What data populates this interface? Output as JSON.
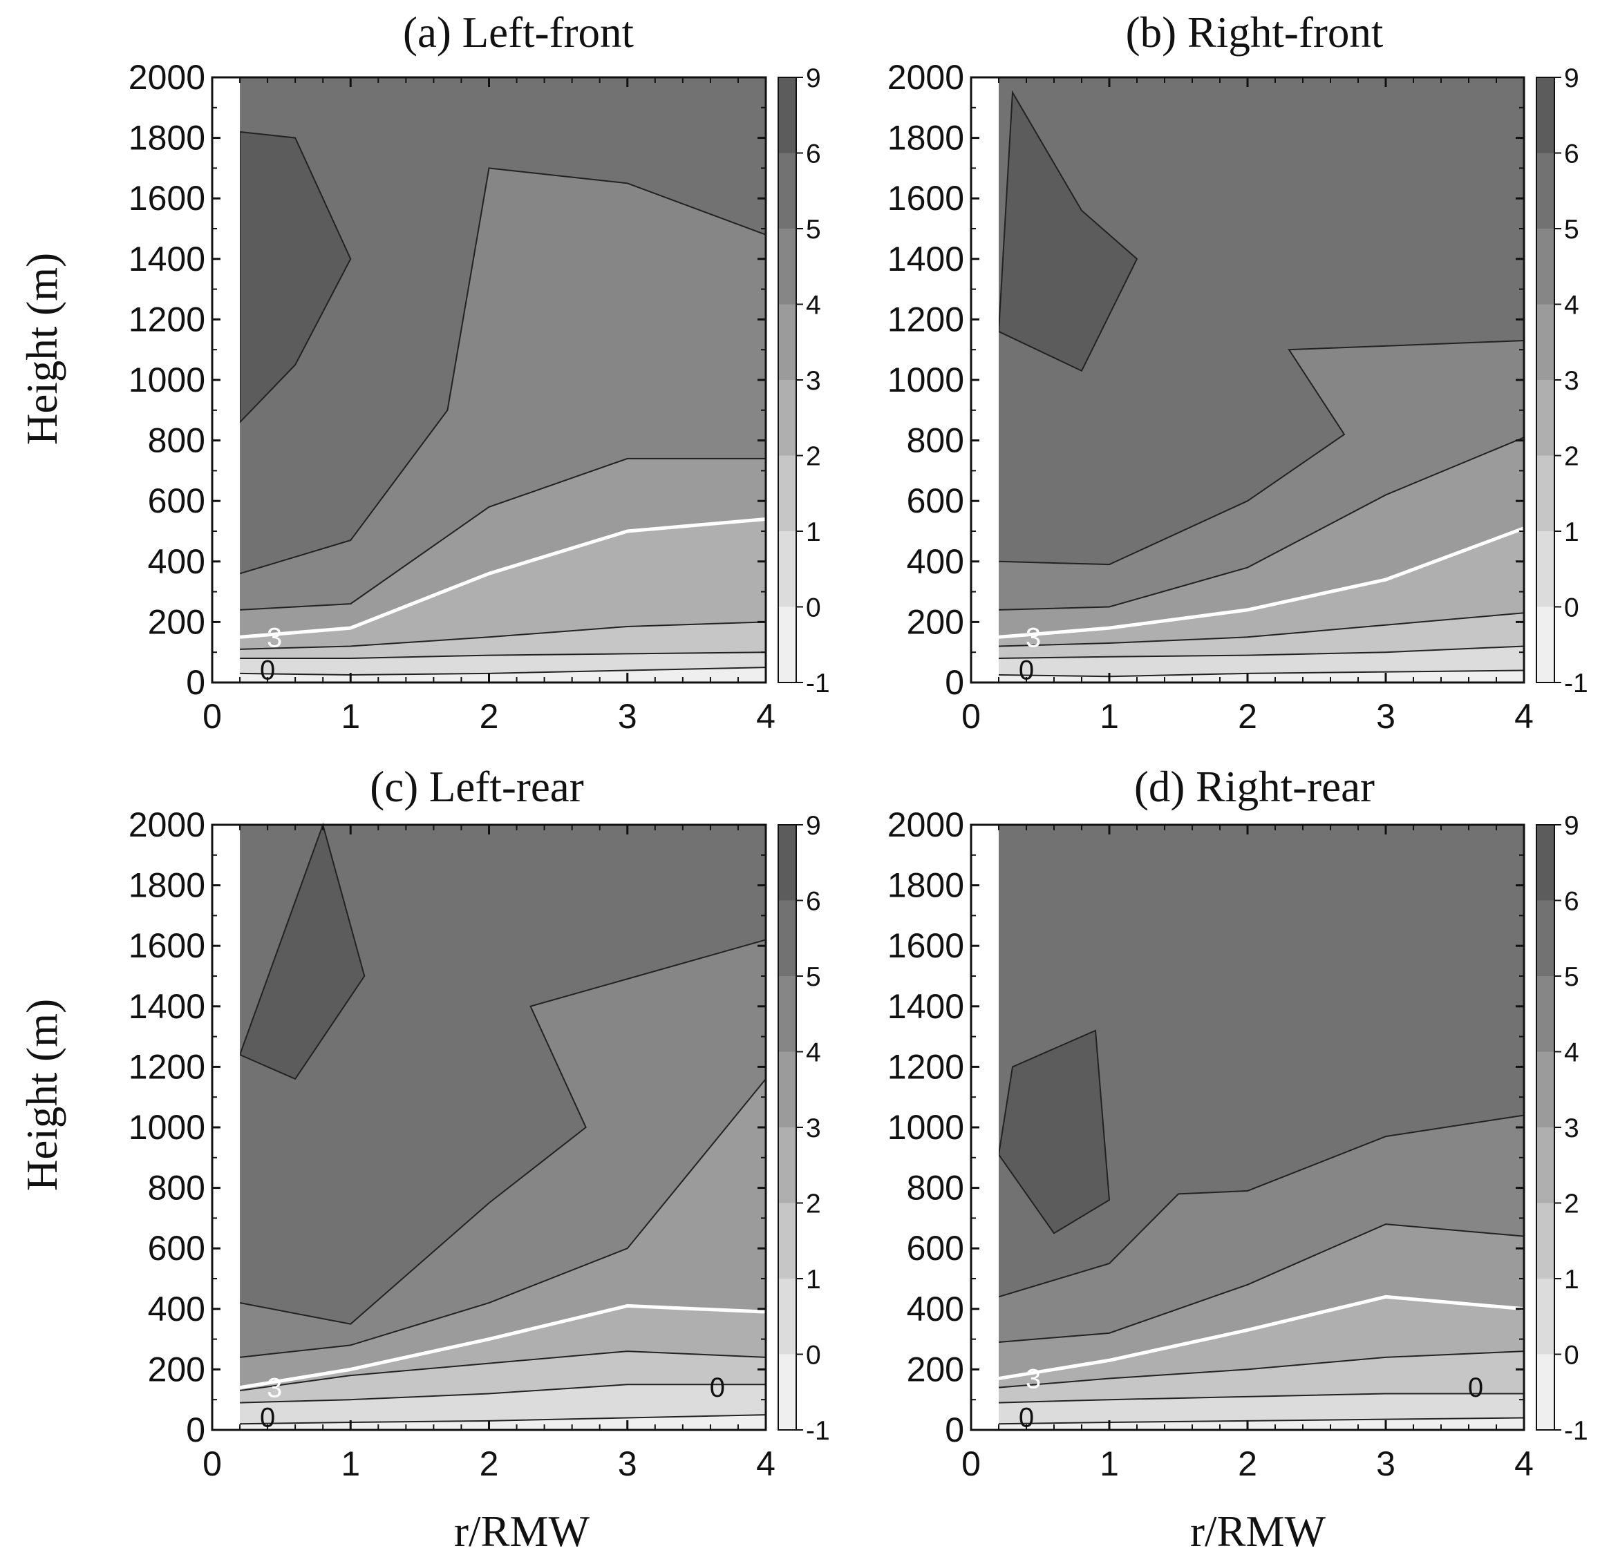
{
  "chart_data": {
    "type": "contour",
    "xlabel": "r/RMW",
    "ylabel": "Height (m)",
    "xlim": [
      0,
      4
    ],
    "ylim": [
      0,
      2000
    ],
    "x_ticks": [
      "0",
      "1",
      "2",
      "3",
      "4"
    ],
    "y_ticks": [
      "0",
      "200",
      "400",
      "600",
      "800",
      "1000",
      "1200",
      "1400",
      "1600",
      "1800",
      "2000"
    ],
    "colorbar_levels": [
      "-1",
      "0",
      "1",
      "2",
      "3",
      "4",
      "5",
      "6",
      "9"
    ],
    "colorbar_colors": [
      "#efefef",
      "#dcdcdc",
      "#c6c6c6",
      "#afafaf",
      "#9b9b9b",
      "#868686",
      "#727272",
      "#5c5c5c"
    ],
    "highlight_contour": {
      "value": "3",
      "color": "#ffffff"
    },
    "panels": [
      {
        "title": "(a) Left-front",
        "contour_labels": [
          "3",
          "0"
        ],
        "contours": [
          {
            "level": 0,
            "points": [
              [
                0.2,
                30
              ],
              [
                1,
                25
              ],
              [
                2,
                30
              ],
              [
                3,
                40
              ],
              [
                4,
                50
              ]
            ]
          },
          {
            "level": 1,
            "points": [
              [
                0.2,
                80
              ],
              [
                1,
                80
              ],
              [
                2,
                90
              ],
              [
                3,
                95
              ],
              [
                4,
                100
              ]
            ]
          },
          {
            "level": 2,
            "points": [
              [
                0.2,
                110
              ],
              [
                1,
                120
              ],
              [
                2,
                150
              ],
              [
                3,
                185
              ],
              [
                4,
                200
              ]
            ]
          },
          {
            "level": 3,
            "points": [
              [
                0.2,
                150
              ],
              [
                1,
                180
              ],
              [
                2,
                360
              ],
              [
                3,
                500
              ],
              [
                4,
                540
              ]
            ]
          },
          {
            "level": 4,
            "points": [
              [
                0.2,
                240
              ],
              [
                1,
                260
              ],
              [
                2,
                580
              ],
              [
                3,
                740
              ],
              [
                4,
                740
              ]
            ]
          },
          {
            "level": 5,
            "points": [
              [
                0.2,
                360
              ],
              [
                1,
                470
              ],
              [
                1.7,
                900
              ],
              [
                2,
                1700
              ],
              [
                3,
                1650
              ],
              [
                4,
                1480
              ]
            ]
          },
          {
            "level": 6,
            "points": [
              [
                0.2,
                860
              ],
              [
                0.6,
                1050
              ],
              [
                1,
                1400
              ],
              [
                0.6,
                1800
              ],
              [
                0.2,
                1820
              ]
            ]
          }
        ]
      },
      {
        "title": "(b) Right-front",
        "contour_labels": [
          "3",
          "0"
        ],
        "contours": [
          {
            "level": 0,
            "points": [
              [
                0.2,
                25
              ],
              [
                1,
                20
              ],
              [
                2,
                30
              ],
              [
                3,
                35
              ],
              [
                4,
                40
              ]
            ]
          },
          {
            "level": 1,
            "points": [
              [
                0.2,
                80
              ],
              [
                1,
                85
              ],
              [
                2,
                90
              ],
              [
                3,
                100
              ],
              [
                4,
                120
              ]
            ]
          },
          {
            "level": 2,
            "points": [
              [
                0.2,
                120
              ],
              [
                1,
                130
              ],
              [
                2,
                150
              ],
              [
                3,
                190
              ],
              [
                4,
                230
              ]
            ]
          },
          {
            "level": 3,
            "points": [
              [
                0.2,
                150
              ],
              [
                1,
                180
              ],
              [
                2,
                240
              ],
              [
                3,
                340
              ],
              [
                4,
                510
              ]
            ]
          },
          {
            "level": 4,
            "points": [
              [
                0.2,
                240
              ],
              [
                1,
                250
              ],
              [
                2,
                380
              ],
              [
                3,
                620
              ],
              [
                4,
                810
              ]
            ]
          },
          {
            "level": 5,
            "points": [
              [
                0.2,
                400
              ],
              [
                1,
                390
              ],
              [
                2,
                600
              ],
              [
                2.7,
                820
              ],
              [
                2.3,
                1100
              ],
              [
                4,
                1130
              ]
            ]
          },
          {
            "level": 6,
            "points": [
              [
                0.2,
                1160
              ],
              [
                0.8,
                1030
              ],
              [
                1.2,
                1400
              ],
              [
                0.8,
                1560
              ],
              [
                0.3,
                1950
              ]
            ]
          }
        ]
      },
      {
        "title": "(c) Left-rear",
        "contour_labels": [
          "3",
          "0",
          "0"
        ],
        "contours": [
          {
            "level": 0,
            "points": [
              [
                0.2,
                20
              ],
              [
                1,
                25
              ],
              [
                2,
                30
              ],
              [
                3,
                40
              ],
              [
                4,
                50
              ]
            ]
          },
          {
            "level": 1,
            "points": [
              [
                0.2,
                90
              ],
              [
                1,
                100
              ],
              [
                2,
                120
              ],
              [
                3,
                150
              ],
              [
                4,
                150
              ]
            ]
          },
          {
            "level": 2,
            "points": [
              [
                0.2,
                130
              ],
              [
                1,
                180
              ],
              [
                2,
                220
              ],
              [
                3,
                260
              ],
              [
                4,
                240
              ]
            ]
          },
          {
            "level": 3,
            "points": [
              [
                0.2,
                140
              ],
              [
                1,
                200
              ],
              [
                2,
                300
              ],
              [
                3,
                410
              ],
              [
                4,
                390
              ]
            ]
          },
          {
            "level": 4,
            "points": [
              [
                0.2,
                240
              ],
              [
                1,
                280
              ],
              [
                2,
                420
              ],
              [
                3,
                600
              ],
              [
                4,
                1160
              ]
            ]
          },
          {
            "level": 5,
            "points": [
              [
                0.2,
                420
              ],
              [
                1,
                350
              ],
              [
                2,
                750
              ],
              [
                2.7,
                1000
              ],
              [
                2.3,
                1400
              ],
              [
                4,
                1620
              ]
            ]
          },
          {
            "level": 6,
            "points": [
              [
                0.2,
                1240
              ],
              [
                0.6,
                1160
              ],
              [
                1.1,
                1500
              ],
              [
                0.8,
                2000
              ]
            ]
          }
        ]
      },
      {
        "title": "(d) Right-rear",
        "contour_labels": [
          "3",
          "0",
          "0"
        ],
        "contours": [
          {
            "level": 0,
            "points": [
              [
                0.2,
                20
              ],
              [
                1,
                25
              ],
              [
                2,
                30
              ],
              [
                3,
                35
              ],
              [
                4,
                40
              ]
            ]
          },
          {
            "level": 1,
            "points": [
              [
                0.2,
                90
              ],
              [
                1,
                100
              ],
              [
                2,
                110
              ],
              [
                3,
                120
              ],
              [
                4,
                120
              ]
            ]
          },
          {
            "level": 2,
            "points": [
              [
                0.2,
                140
              ],
              [
                1,
                170
              ],
              [
                2,
                200
              ],
              [
                3,
                240
              ],
              [
                4,
                260
              ]
            ]
          },
          {
            "level": 3,
            "points": [
              [
                0.2,
                170
              ],
              [
                1,
                230
              ],
              [
                2,
                330
              ],
              [
                3,
                440
              ],
              [
                4,
                400
              ]
            ]
          },
          {
            "level": 4,
            "points": [
              [
                0.2,
                290
              ],
              [
                1,
                320
              ],
              [
                2,
                480
              ],
              [
                3,
                680
              ],
              [
                4,
                640
              ]
            ]
          },
          {
            "level": 5,
            "points": [
              [
                0.2,
                440
              ],
              [
                1,
                550
              ],
              [
                1.5,
                780
              ],
              [
                2,
                790
              ],
              [
                3,
                970
              ],
              [
                4,
                1040
              ]
            ]
          },
          {
            "level": 6,
            "points": [
              [
                0.2,
                910
              ],
              [
                0.6,
                650
              ],
              [
                1,
                760
              ],
              [
                0.9,
                1320
              ],
              [
                0.3,
                1200
              ]
            ]
          }
        ]
      }
    ]
  }
}
